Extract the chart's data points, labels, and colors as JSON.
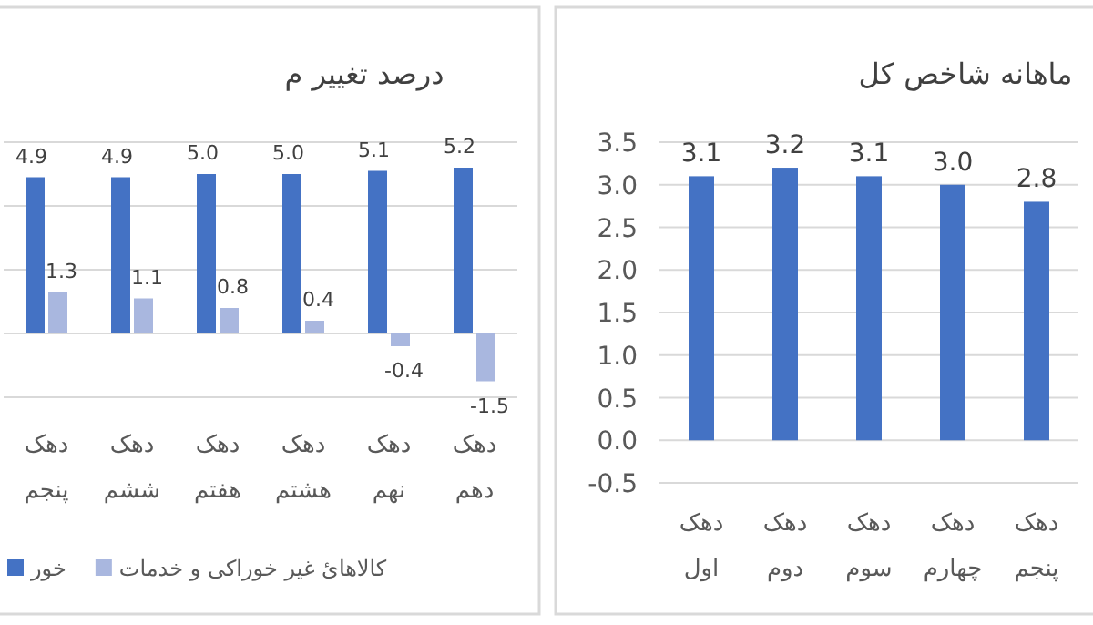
{
  "chart_data": [
    {
      "type": "bar",
      "title": "درصد تغییر م",
      "categories": [
        "دهک پنجم",
        "دهک ششم",
        "دهک هفتم",
        "دهک هشتم",
        "دهک نهم",
        "دهک دهم"
      ],
      "series": [
        {
          "name": "خور",
          "color": "#4472c4",
          "values": [
            4.9,
            4.9,
            5.0,
            5.0,
            5.1,
            5.2
          ],
          "value_labels": [
            "4.9",
            "4.9",
            "5.0",
            "5.0",
            "5.1",
            "5.2"
          ]
        },
        {
          "name": "کالاهایٔ غیر خوراکی و خدمات",
          "color": "#a9b7df",
          "values": [
            1.3,
            1.1,
            0.8,
            0.4,
            -0.4,
            -1.5
          ],
          "value_labels": [
            "1.3",
            "1.1",
            "0.8",
            "0.4",
            "-0.4",
            "-1.5"
          ]
        }
      ],
      "ylim": [
        -2,
        6
      ],
      "yticks": [
        {
          "value": -2,
          "label": null
        },
        {
          "value": 0,
          "label": null
        },
        {
          "value": 2,
          "label": null
        },
        {
          "value": 4,
          "label": null
        },
        {
          "value": 6,
          "label": null
        }
      ],
      "tick_labels": "x",
      "grid": "y",
      "legend": "bottom"
    },
    {
      "type": "bar",
      "title": "ماهانه شاخص کل",
      "categories": [
        "دهک اول",
        "دهک دوم",
        "دهک سوم",
        "دهک چهارم",
        "دهک پنجم"
      ],
      "series": [
        {
          "color": "#4472c4",
          "values": [
            3.1,
            3.2,
            3.1,
            3.0,
            2.8
          ],
          "value_labels": [
            "3.1",
            "3.2",
            "3.1",
            "3.0",
            "2.8"
          ]
        }
      ],
      "ylim": [
        -0.5,
        3.5
      ],
      "yticks": [
        {
          "value": -0.5,
          "label": "-0.5"
        },
        {
          "value": 0,
          "label": "0.0"
        },
        {
          "value": 0.5,
          "label": "0.5"
        },
        {
          "value": 1,
          "label": "1.0"
        },
        {
          "value": 1.5,
          "label": "1.5"
        },
        {
          "value": 2,
          "label": "2.0"
        },
        {
          "value": 2.5,
          "label": "2.5"
        },
        {
          "value": 3,
          "label": "3.0"
        },
        {
          "value": 3.5,
          "label": "3.5"
        }
      ],
      "grid": "y"
    }
  ]
}
